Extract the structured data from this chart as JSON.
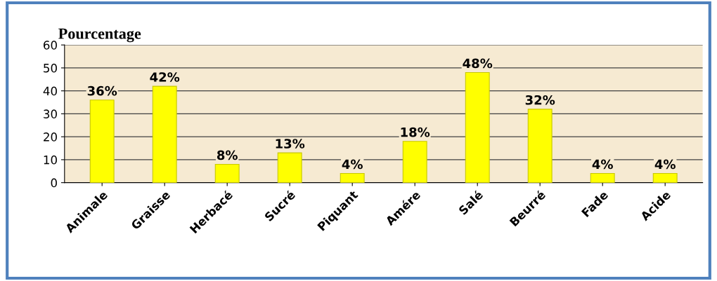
{
  "chart_data": {
    "type": "bar",
    "ylabel": "Pourcentage",
    "categories": [
      "Animale",
      "Graisse",
      "Herbacé",
      "Sucré",
      "Piquant",
      "Amére",
      "Salé",
      "Beurré",
      "Fade",
      "Acide"
    ],
    "values": [
      36,
      42,
      8,
      13,
      4,
      18,
      48,
      32,
      4,
      4
    ],
    "value_labels": [
      "36%",
      "42%",
      "8%",
      "13%",
      "4%",
      "18%",
      "48%",
      "32%",
      "4%",
      "4%"
    ],
    "color": "#ffff00",
    "ylim": [
      0,
      60
    ],
    "yticks": [
      0,
      10,
      20,
      30,
      40,
      50,
      60
    ],
    "grid": "y"
  }
}
